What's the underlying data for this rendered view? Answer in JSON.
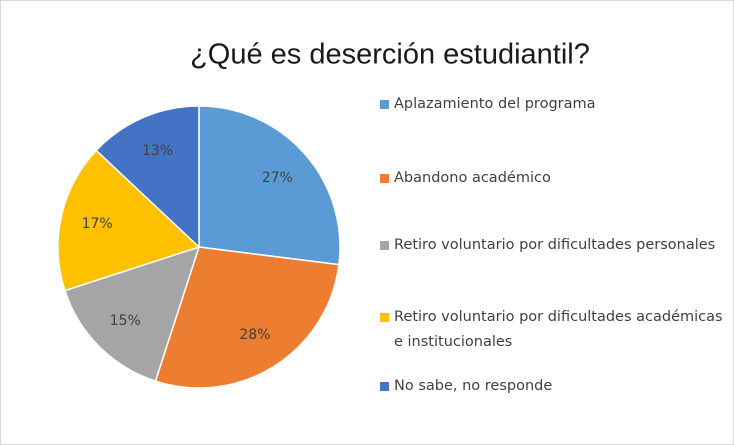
{
  "chart_data": {
    "type": "pie",
    "title": "¿Qué es deserción estudiantil?",
    "categories": [
      "Aplazamiento del programa",
      "Abandono académico",
      "Retiro voluntario por dificultades personales",
      "Retiro voluntario por dificultades académicas e institucionales",
      "No sabe, no responde"
    ],
    "values": [
      27,
      28,
      15,
      17,
      13
    ],
    "value_labels": [
      "27%",
      "28%",
      "15%",
      "17%",
      "13%"
    ],
    "colors": [
      "#5b9bd5",
      "#ed7d31",
      "#a5a5a5",
      "#ffc000",
      "#4472c4"
    ],
    "legend": "right"
  }
}
